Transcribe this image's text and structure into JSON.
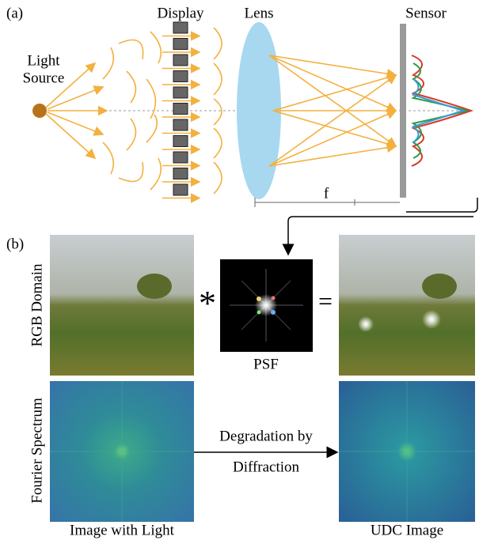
{
  "panel_a": {
    "label": "(a)",
    "display": "Display",
    "lens": "Lens",
    "sensor": "Sensor",
    "light_source": [
      "Light",
      "Source"
    ],
    "focal_length": "f"
  },
  "panel_b": {
    "label": "(b)",
    "rows": [
      "RGB Domain",
      "Fourier Spectrum"
    ],
    "convolution_symbol": "*",
    "equals_symbol": "=",
    "psf": "PSF",
    "arrow_label": [
      "Degradation by",
      "Diffraction"
    ],
    "captions": [
      "Image with Light",
      "UDC Image"
    ]
  }
}
